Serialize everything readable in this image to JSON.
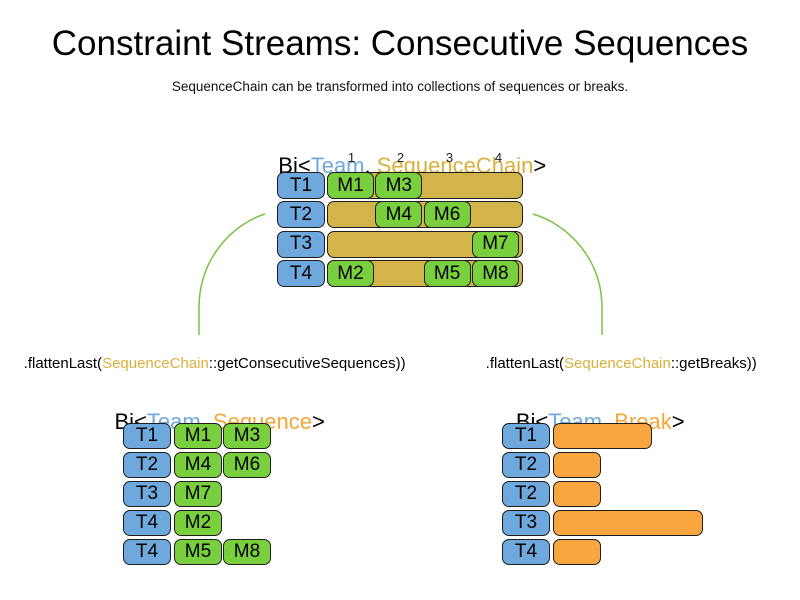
{
  "title": "Constraint Streams: Consecutive Sequences",
  "subtitle": "SequenceChain can be transformed into collections of sequences or breaks.",
  "colors": {
    "team_blue": "#6fa8dc",
    "match_green": "#79cf3d",
    "chain_gold": "#d8b13c",
    "chain_gold_bar": "#d2b44a",
    "break_orange": "#f9a640",
    "break_orange_text": "#f6a637",
    "arrow_green": "#7cc142",
    "border": "#1f1f1f"
  },
  "top_diagram": {
    "header": {
      "prefix": "Bi<",
      "team": "Team",
      "comma": ", ",
      "type": "SequenceChain",
      "suffix": ">"
    },
    "column_labels": [
      "1",
      "2",
      "3",
      "4"
    ],
    "rows": [
      {
        "team": "T1",
        "matches": [
          {
            "label": "M1",
            "slot": 0
          },
          {
            "label": "M3",
            "slot": 1
          }
        ]
      },
      {
        "team": "T2",
        "matches": [
          {
            "label": "M4",
            "slot": 1
          },
          {
            "label": "M6",
            "slot": 2
          }
        ]
      },
      {
        "team": "T3",
        "matches": [
          {
            "label": "M7",
            "slot": 3
          }
        ]
      },
      {
        "team": "T4",
        "matches": [
          {
            "label": "M2",
            "slot": 0
          },
          {
            "label": "M5",
            "slot": 2
          },
          {
            "label": "M8",
            "slot": 3
          }
        ]
      }
    ]
  },
  "left_transform": {
    "text_before": ".flattenLast(",
    "highlight": "SequenceChain",
    "text_after": "::getConsecutiveSequences))"
  },
  "right_transform": {
    "text_before": ".flattenLast(",
    "highlight": "SequenceChain",
    "text_after": "::getBreaks))"
  },
  "left_diagram": {
    "header": {
      "prefix": "Bi<",
      "team": "Team",
      "comma": ", ",
      "type": "Sequence",
      "suffix": ">"
    },
    "rows": [
      {
        "team": "T1",
        "matches": [
          "M1",
          "M3"
        ]
      },
      {
        "team": "T2",
        "matches": [
          "M4",
          "M6"
        ]
      },
      {
        "team": "T3",
        "matches": [
          "M7"
        ]
      },
      {
        "team": "T4",
        "matches": [
          "M2"
        ]
      },
      {
        "team": "T4",
        "matches": [
          "M5",
          "M8"
        ]
      }
    ]
  },
  "right_diagram": {
    "header": {
      "prefix": "Bi<",
      "team": "Team",
      "comma": ", ",
      "type": "Break",
      "suffix": ">"
    },
    "rows": [
      {
        "team": "T1",
        "break_slots": 2
      },
      {
        "team": "T2",
        "break_slots": 1
      },
      {
        "team": "T2",
        "break_slots": 1
      },
      {
        "team": "T3",
        "break_slots": 3
      },
      {
        "team": "T4",
        "break_slots": 1
      }
    ]
  }
}
